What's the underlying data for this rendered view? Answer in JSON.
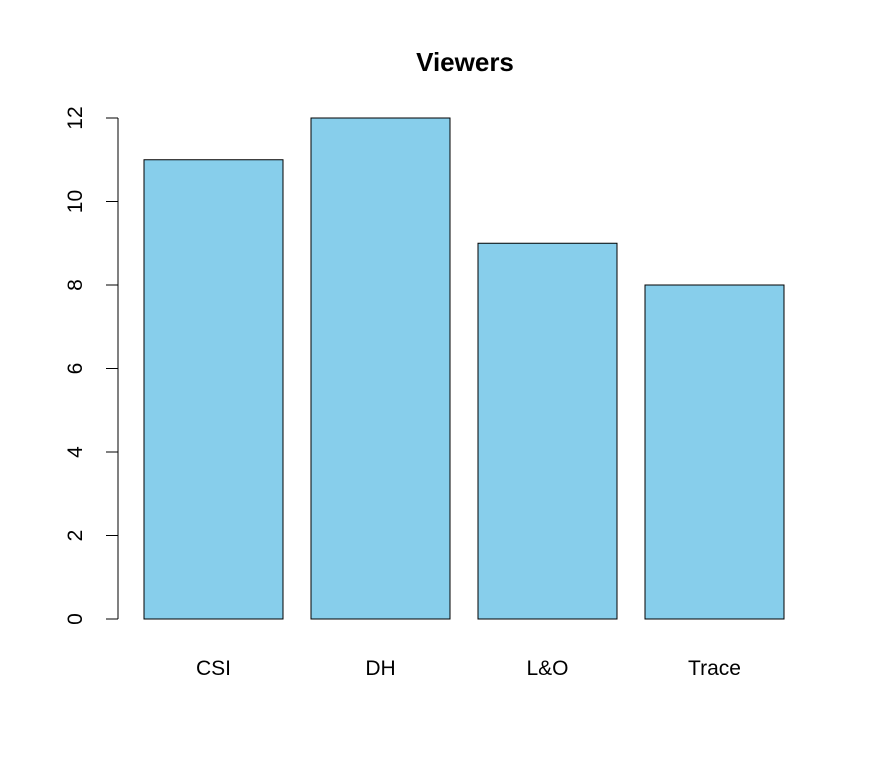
{
  "chart_data": {
    "type": "bar",
    "title": "Viewers",
    "xlabel": "",
    "ylabel": "",
    "categories": [
      "CSI",
      "DH",
      "L&O",
      "Trace"
    ],
    "values": [
      11,
      12,
      9,
      8
    ],
    "ylim": [
      0,
      12
    ],
    "yticks": [
      0,
      2,
      4,
      6,
      8,
      10,
      12
    ],
    "grid": false,
    "legend": "none",
    "colors": {
      "bar_fill": "#87CEEB",
      "bar_stroke": "#000000",
      "axis": "#000000",
      "background": "#FFFFFF"
    }
  }
}
